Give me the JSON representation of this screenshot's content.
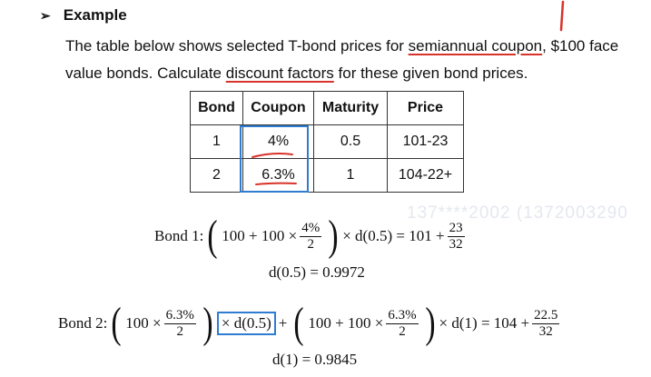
{
  "heading": {
    "bullet": "➢",
    "title": "Example"
  },
  "paragraph": {
    "part1": "The table below shows selected T-bond prices for ",
    "underline1": "semiannual coupon",
    "part2": ", $100 face value bonds. Calculate ",
    "underline2": "discount factors",
    "part3": " for these given bond prices."
  },
  "table": {
    "headers": [
      "Bond",
      "Coupon",
      "Maturity",
      "Price"
    ],
    "rows": [
      [
        "1",
        "4%",
        "0.5",
        "101-23"
      ],
      [
        "2",
        "6.3%",
        "1",
        "104-22+"
      ]
    ]
  },
  "watermark": "137****2002  (1372003290",
  "eq1": {
    "label": "Bond 1:",
    "lead": "100 + 100 ×",
    "frac_num": "4%",
    "frac_den": "2",
    "mid": "× d(0.5) = 101 +",
    "frac2_num": "23",
    "frac2_den": "32",
    "result": "d(0.5) = 0.9972"
  },
  "eq2": {
    "label": "Bond 2:",
    "lead": "100 ×",
    "frac_num": "6.3%",
    "frac_den": "2",
    "boxed": "× d(0.5)",
    "plus": "+",
    "lead2": "100 + 100 ×",
    "frac2_num": "6.3%",
    "frac2_den": "2",
    "mid": "× d(1) = 104 +",
    "frac3_num": "22.5",
    "frac3_den": "32",
    "result": "d(1) = 0.9845"
  },
  "colors": {
    "underline": "#d8332a",
    "highlight_box": "#2e7dd1"
  }
}
